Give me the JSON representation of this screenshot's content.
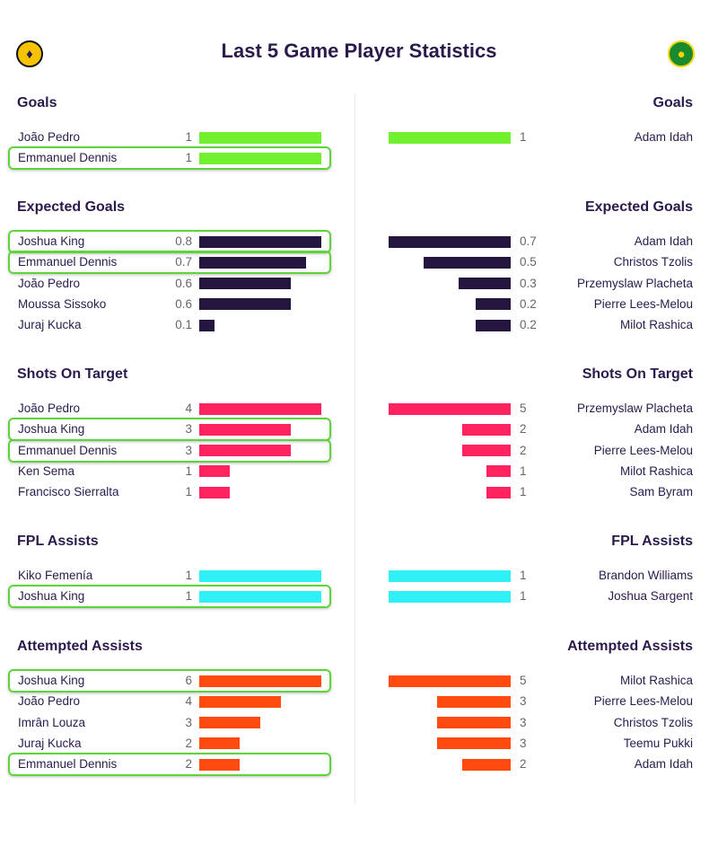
{
  "header": {
    "title": "Last 5 Game Player Statistics",
    "left_badge_icon": "watford-badge-icon",
    "right_badge_icon": "norwich-badge-icon"
  },
  "colors": {
    "Goals": "#71f02f",
    "Expected Goals": "#24163f",
    "Shots On Target": "#ff2460",
    "FPL Assists": "#2ff0f4",
    "Attempted Assists": "#ff4b0f",
    "highlight": "#5fd33a"
  },
  "chart_data": {
    "type": "bar",
    "orientation": "horizontal",
    "sections": [
      {
        "stat": "Goals",
        "left": [
          {
            "player": "João Pedro",
            "value": 1,
            "value_label": "1",
            "highlighted": false
          },
          {
            "player": "Emmanuel Dennis",
            "value": 1,
            "value_label": "1",
            "highlighted": true
          }
        ],
        "right": [
          {
            "player": "Adam Idah",
            "value": 1,
            "value_label": "1"
          }
        ]
      },
      {
        "stat": "Expected Goals",
        "left": [
          {
            "player": "Joshua King",
            "value": 0.8,
            "value_label": "0.8",
            "highlighted": true
          },
          {
            "player": "Emmanuel Dennis",
            "value": 0.7,
            "value_label": "0.7",
            "highlighted": true
          },
          {
            "player": "João Pedro",
            "value": 0.6,
            "value_label": "0.6",
            "highlighted": false
          },
          {
            "player": "Moussa Sissoko",
            "value": 0.6,
            "value_label": "0.6",
            "highlighted": false
          },
          {
            "player": "Juraj Kucka",
            "value": 0.1,
            "value_label": "0.1",
            "highlighted": false
          }
        ],
        "right": [
          {
            "player": "Adam Idah",
            "value": 0.7,
            "value_label": "0.7"
          },
          {
            "player": "Christos Tzolis",
            "value": 0.5,
            "value_label": "0.5"
          },
          {
            "player": "Przemyslaw Placheta",
            "value": 0.3,
            "value_label": "0.3"
          },
          {
            "player": "Pierre Lees-Melou",
            "value": 0.2,
            "value_label": "0.2"
          },
          {
            "player": "Milot Rashica",
            "value": 0.2,
            "value_label": "0.2"
          }
        ]
      },
      {
        "stat": "Shots On Target",
        "left": [
          {
            "player": "João Pedro",
            "value": 4,
            "value_label": "4",
            "highlighted": false
          },
          {
            "player": "Joshua King",
            "value": 3,
            "value_label": "3",
            "highlighted": true
          },
          {
            "player": "Emmanuel Dennis",
            "value": 3,
            "value_label": "3",
            "highlighted": true
          },
          {
            "player": "Ken Sema",
            "value": 1,
            "value_label": "1",
            "highlighted": false
          },
          {
            "player": "Francisco Sierralta",
            "value": 1,
            "value_label": "1",
            "highlighted": false
          }
        ],
        "right": [
          {
            "player": "Przemyslaw Placheta",
            "value": 5,
            "value_label": "5"
          },
          {
            "player": "Adam Idah",
            "value": 2,
            "value_label": "2"
          },
          {
            "player": "Pierre Lees-Melou",
            "value": 2,
            "value_label": "2"
          },
          {
            "player": "Milot Rashica",
            "value": 1,
            "value_label": "1"
          },
          {
            "player": "Sam Byram",
            "value": 1,
            "value_label": "1"
          }
        ]
      },
      {
        "stat": "FPL Assists",
        "left": [
          {
            "player": "Kiko Femenía",
            "value": 1,
            "value_label": "1",
            "highlighted": false
          },
          {
            "player": "Joshua King",
            "value": 1,
            "value_label": "1",
            "highlighted": true
          }
        ],
        "right": [
          {
            "player": "Brandon Williams",
            "value": 1,
            "value_label": "1"
          },
          {
            "player": "Joshua Sargent",
            "value": 1,
            "value_label": "1"
          }
        ]
      },
      {
        "stat": "Attempted Assists",
        "left": [
          {
            "player": "Joshua King",
            "value": 6,
            "value_label": "6",
            "highlighted": true
          },
          {
            "player": "João Pedro",
            "value": 4,
            "value_label": "4",
            "highlighted": false
          },
          {
            "player": "Imrân Louza",
            "value": 3,
            "value_label": "3",
            "highlighted": false
          },
          {
            "player": "Juraj Kucka",
            "value": 2,
            "value_label": "2",
            "highlighted": false
          },
          {
            "player": "Emmanuel Dennis",
            "value": 2,
            "value_label": "2",
            "highlighted": true
          }
        ],
        "right": [
          {
            "player": "Milot Rashica",
            "value": 5,
            "value_label": "5"
          },
          {
            "player": "Pierre Lees-Melou",
            "value": 3,
            "value_label": "3"
          },
          {
            "player": "Christos Tzolis",
            "value": 3,
            "value_label": "3"
          },
          {
            "player": "Teemu Pukki",
            "value": 3,
            "value_label": "3"
          },
          {
            "player": "Adam Idah",
            "value": 2,
            "value_label": "2"
          }
        ]
      }
    ]
  }
}
